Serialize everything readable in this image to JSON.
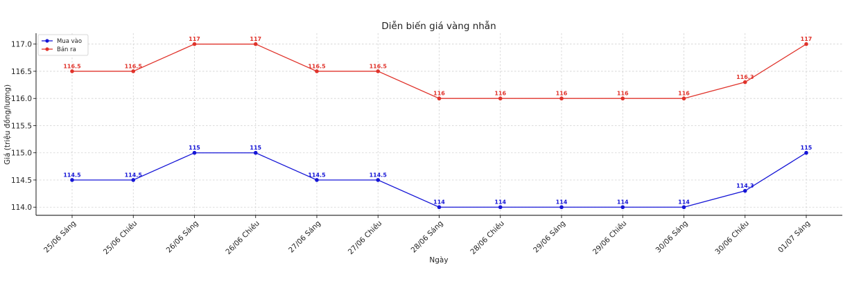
{
  "chart_data": {
    "type": "line",
    "title": "Diễn biến giá vàng nhẫn",
    "xlabel": "Ngày",
    "ylabel": "Giá (triệu đồng/lượng)",
    "categories": [
      "25/06 Sáng",
      "25/06 Chiều",
      "26/06 Sáng",
      "26/06 Chiều",
      "27/06 Sáng",
      "27/06 Chiều",
      "28/06 Sáng",
      "28/06 Chiều",
      "29/06 Sáng",
      "29/06 Chiều",
      "30/06 Sáng",
      "30/06 Chiều",
      "01/07 Sáng"
    ],
    "ylim": [
      113.85,
      117.2
    ],
    "yticks": [
      "114.0",
      "114.5",
      "115.0",
      "115.5",
      "116.0",
      "116.5",
      "117.0"
    ],
    "grid": true,
    "legend_position": "top-left",
    "series": [
      {
        "name": "Mua vào",
        "color": "#1515d6",
        "values": [
          114.5,
          114.5,
          115,
          115,
          114.5,
          114.5,
          114,
          114,
          114,
          114,
          114,
          114.3,
          115
        ],
        "labels": [
          "114.5",
          "114.5",
          "115",
          "115",
          "114.5",
          "114.5",
          "114",
          "114",
          "114",
          "114",
          "114",
          "114.3",
          "115"
        ]
      },
      {
        "name": "Bán ra",
        "color": "#e0332b",
        "values": [
          116.5,
          116.5,
          117,
          117,
          116.5,
          116.5,
          116,
          116,
          116,
          116,
          116,
          116.3,
          117
        ],
        "labels": [
          "116.5",
          "116.5",
          "117",
          "117",
          "116.5",
          "116.5",
          "116",
          "116",
          "116",
          "116",
          "116",
          "116.3",
          "117"
        ]
      }
    ]
  }
}
